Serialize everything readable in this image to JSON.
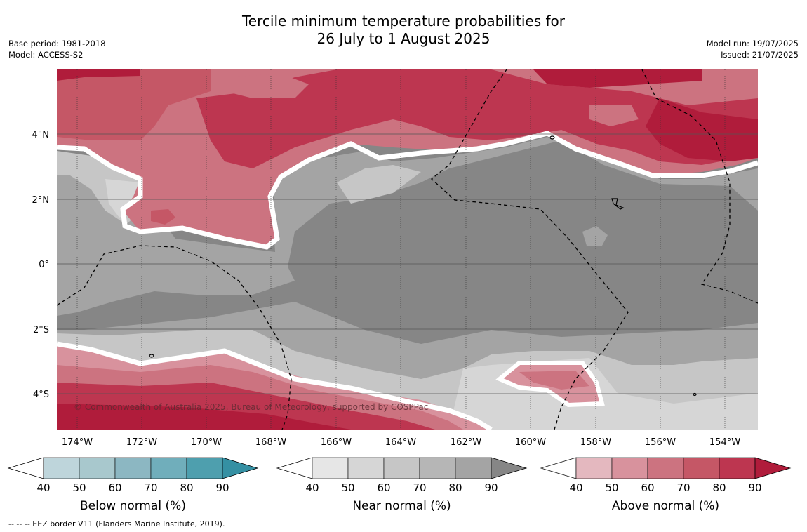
{
  "title_line1": "Tercile minimum temperature probabilities for",
  "title_line2": "26 July to 1 August 2025",
  "meta_left": {
    "base_period": "Base period: 1981-2018",
    "model": "Model: ACCESS-S2"
  },
  "meta_right": {
    "model_run": "Model run: 19/07/2025",
    "issued": "Issued: 21/07/2025"
  },
  "map": {
    "lon_range": [
      174.6,
      153.0
    ],
    "lat_range": [
      5.9,
      -5.0
    ],
    "lon_ticks": [
      "174°W",
      "172°W",
      "170°W",
      "168°W",
      "166°W",
      "164°W",
      "162°W",
      "160°W",
      "158°W",
      "156°W",
      "154°W"
    ],
    "lat_ticks": [
      "4°N",
      "2°N",
      "0°",
      "2°S",
      "4°S"
    ],
    "copyright": "© Commonwealth of Australia 2025, Bureau of Meteorology, supported by COSPPac"
  },
  "colorbars": [
    {
      "name": "below",
      "label": "Below normal (%)",
      "ticks": [
        "40",
        "50",
        "60",
        "70",
        "80",
        "90"
      ],
      "colors": [
        "#bed5db",
        "#a8c8cd",
        "#8cb7c2",
        "#70aebb",
        "#4e9fae"
      ],
      "arrow": "#3590a3"
    },
    {
      "name": "near",
      "label": "Near normal (%)",
      "ticks": [
        "40",
        "50",
        "60",
        "70",
        "80",
        "90"
      ],
      "colors": [
        "#e6e6e6",
        "#d6d6d6",
        "#c6c6c6",
        "#b6b6b6",
        "#a4a4a4"
      ],
      "arrow": "#868686"
    },
    {
      "name": "above",
      "label": "Above normal (%)",
      "ticks": [
        "40",
        "50",
        "60",
        "70",
        "80",
        "90"
      ],
      "colors": [
        "#e4b8bf",
        "#d8929d",
        "#cc7380",
        "#c55766",
        "#bd3650"
      ],
      "arrow": "#b01c3b"
    }
  ],
  "footnote": "--  --  -- EEZ border V11 (Flanders Marine Institute, 2019)."
}
